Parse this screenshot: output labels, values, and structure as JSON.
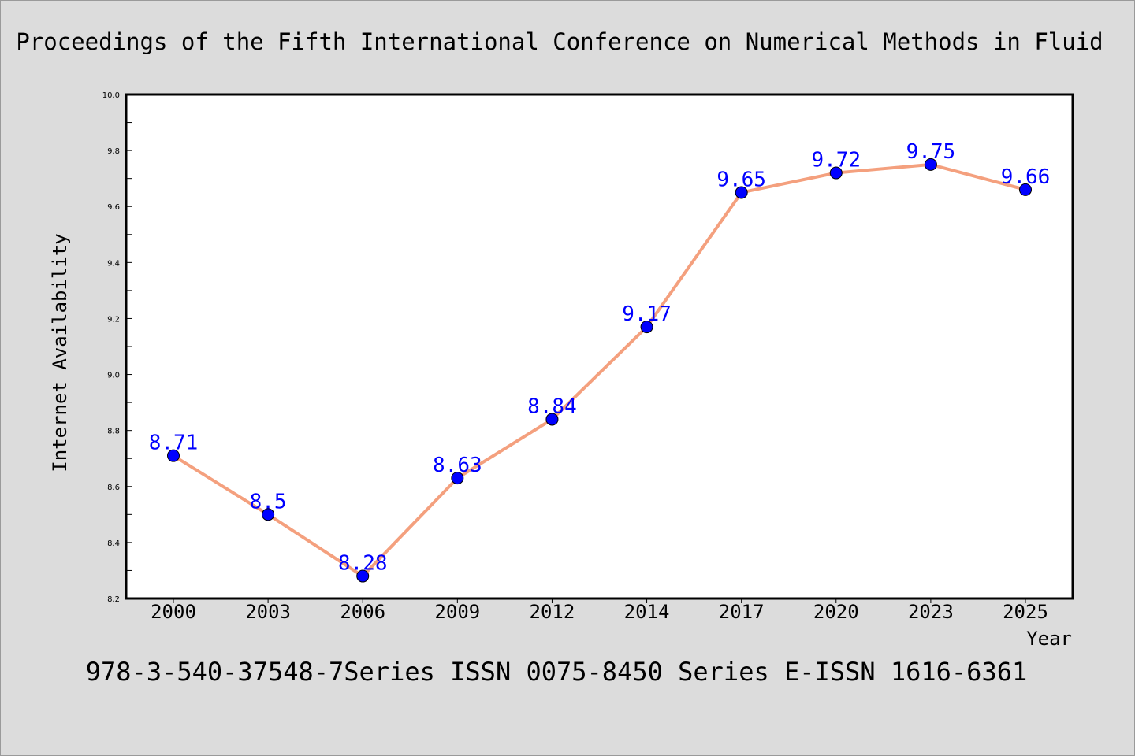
{
  "title": "Proceedings of the Fifth International Conference on Numerical Methods in Fluid",
  "footer": "978-3-540-37548-7Series ISSN 0075-8450 Series E-ISSN 1616-6361",
  "colors": {
    "background": "#dcdcdc",
    "plot_background": "#ffffff",
    "line": "#f4a07e",
    "marker": "#0000ff",
    "data_label": "#0000ff"
  },
  "chart_data": {
    "type": "line",
    "title": "Proceedings of the Fifth International Conference on Numerical Methods in Fluid",
    "xlabel": "Year",
    "ylabel": "Internet Availability",
    "categories": [
      "2000",
      "2003",
      "2006",
      "2009",
      "2012",
      "2014",
      "2017",
      "2020",
      "2023",
      "2025"
    ],
    "series": [
      {
        "values": [
          8.71,
          8.5,
          8.28,
          8.63,
          8.84,
          9.17,
          9.65,
          9.72,
          9.75,
          9.66
        ],
        "labels": [
          "8.71",
          "8.5",
          "8.28",
          "8.63",
          "8.84",
          "9.17",
          "9.65",
          "9.72",
          "9.75",
          "9.66"
        ]
      }
    ],
    "ylim": [
      8.2,
      10.0
    ],
    "yticks": [
      "8.2",
      "8.4",
      "8.6",
      "8.8",
      "9.0",
      "9.2",
      "9.4",
      "9.6",
      "9.8",
      "10.0"
    ],
    "grid": false,
    "legend": "none"
  }
}
